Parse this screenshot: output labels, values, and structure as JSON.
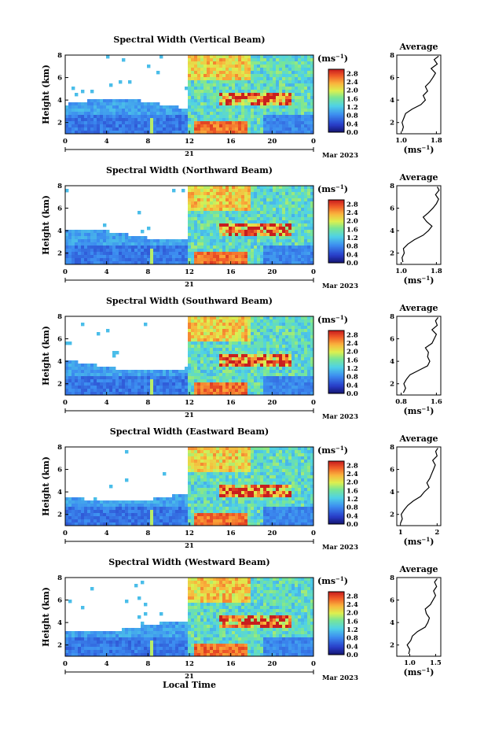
{
  "figure": {
    "xlabel": "Local Time",
    "date_label": "Mar 2023",
    "day_label": "21",
    "colorbar_unit": "(ms",
    "colorbar_unit_sup": "−1",
    "colorbar_unit_close": ")",
    "avg_xlabel": "(ms",
    "avg_xlabel_sup": "−1",
    "avg_xlabel_close": ")",
    "avg_title": "Average",
    "ylabel": "Height (km)"
  },
  "chart_data": [
    {
      "type": "heatmap",
      "title": "Spectral Width (Vertical Beam)",
      "xlabel": "",
      "ylabel": "Height (km)",
      "x_ticks": [
        "0",
        "4",
        "8",
        "12",
        "16",
        "20",
        "0"
      ],
      "x_range_hours": [
        0,
        24
      ],
      "y_ticks": [
        "2",
        "4",
        "6",
        "8"
      ],
      "y_range_km": [
        1,
        8
      ],
      "colorbar_ticks": [
        "0.0",
        "0.4",
        "0.8",
        "1.2",
        "1.6",
        "2.0",
        "2.4",
        "2.8"
      ],
      "colorbar_range": [
        0,
        3
      ],
      "average_profile": {
        "x_ticks": [
          "1.0",
          "1.8"
        ],
        "x_range": [
          0.9,
          1.9
        ],
        "y_ticks": [
          "2",
          "4",
          "6",
          "8"
        ],
        "height_km": [
          1.2,
          1.6,
          2.0,
          2.4,
          2.8,
          3.2,
          3.6,
          4.0,
          4.4,
          4.8,
          5.2,
          5.6,
          6.0,
          6.4,
          6.8,
          7.2,
          7.6,
          7.9
        ],
        "width": [
          1.02,
          1.05,
          1.02,
          1.06,
          1.1,
          1.25,
          1.45,
          1.55,
          1.5,
          1.6,
          1.55,
          1.65,
          1.72,
          1.78,
          1.68,
          1.82,
          1.75,
          1.85
        ]
      }
    },
    {
      "type": "heatmap",
      "title": "Spectral Width (Northward Beam)",
      "xlabel": "",
      "ylabel": "Height (km)",
      "x_ticks": [
        "0",
        "4",
        "8",
        "12",
        "16",
        "20",
        "0"
      ],
      "x_range_hours": [
        0,
        24
      ],
      "y_ticks": [
        "2",
        "4",
        "6",
        "8"
      ],
      "y_range_km": [
        1,
        8
      ],
      "colorbar_ticks": [
        "0.0",
        "0.4",
        "0.8",
        "1.2",
        "1.6",
        "2.0",
        "2.4",
        "2.8"
      ],
      "colorbar_range": [
        0,
        3
      ],
      "average_profile": {
        "x_ticks": [
          "1.0",
          "1.8"
        ],
        "x_range": [
          0.9,
          1.9
        ],
        "y_ticks": [
          "2",
          "4",
          "6",
          "8"
        ],
        "height_km": [
          1.2,
          1.6,
          2.0,
          2.4,
          2.8,
          3.2,
          3.6,
          4.0,
          4.4,
          4.8,
          5.2,
          5.6,
          6.0,
          6.4,
          6.8,
          7.2,
          7.6,
          7.9
        ],
        "width": [
          1.04,
          1.02,
          1.07,
          1.05,
          1.15,
          1.3,
          1.5,
          1.62,
          1.7,
          1.58,
          1.5,
          1.62,
          1.72,
          1.8,
          1.85,
          1.78,
          1.86,
          1.82
        ]
      }
    },
    {
      "type": "heatmap",
      "title": "Spectral Width (Southward Beam)",
      "xlabel": "",
      "ylabel": "Height (km)",
      "x_ticks": [
        "0",
        "4",
        "8",
        "12",
        "16",
        "20",
        "0"
      ],
      "x_range_hours": [
        0,
        24
      ],
      "y_ticks": [
        "2",
        "4",
        "6",
        "8"
      ],
      "y_range_km": [
        1,
        8
      ],
      "colorbar_ticks": [
        "0.0",
        "0.4",
        "0.8",
        "1.2",
        "1.6",
        "2.0",
        "2.4",
        "2.8"
      ],
      "colorbar_range": [
        0,
        3
      ],
      "average_profile": {
        "x_ticks": [
          "0.8",
          "1.6"
        ],
        "x_range": [
          0.7,
          1.7
        ],
        "y_ticks": [
          "2",
          "4",
          "6",
          "8"
        ],
        "height_km": [
          1.2,
          1.6,
          2.0,
          2.4,
          2.8,
          3.2,
          3.6,
          4.0,
          4.4,
          4.8,
          5.2,
          5.6,
          6.0,
          6.4,
          6.8,
          7.2,
          7.6,
          7.9
        ],
        "width": [
          0.85,
          0.9,
          0.86,
          0.92,
          1.0,
          1.2,
          1.4,
          1.45,
          1.4,
          1.42,
          1.35,
          1.5,
          1.55,
          1.6,
          1.5,
          1.62,
          1.58,
          1.64
        ]
      }
    },
    {
      "type": "heatmap",
      "title": "Spectral Width (Eastward Beam)",
      "xlabel": "",
      "ylabel": "Height (km)",
      "x_ticks": [
        "0",
        "4",
        "8",
        "12",
        "16",
        "20",
        "0"
      ],
      "x_range_hours": [
        0,
        24
      ],
      "y_ticks": [
        "2",
        "4",
        "6",
        "8"
      ],
      "y_range_km": [
        1,
        8
      ],
      "colorbar_ticks": [
        "0.0",
        "0.4",
        "0.8",
        "1.2",
        "1.6",
        "2.0",
        "2.4",
        "2.8"
      ],
      "colorbar_range": [
        0,
        3
      ],
      "average_profile": {
        "x_ticks": [
          "1",
          "2"
        ],
        "x_range": [
          0.9,
          2.1
        ],
        "y_ticks": [
          "2",
          "4",
          "6",
          "8"
        ],
        "height_km": [
          1.2,
          1.6,
          2.0,
          2.4,
          2.8,
          3.2,
          3.6,
          4.0,
          4.4,
          4.8,
          5.2,
          5.6,
          6.0,
          6.4,
          6.8,
          7.2,
          7.6,
          7.9
        ],
        "width": [
          1.0,
          1.05,
          1.02,
          1.1,
          1.2,
          1.35,
          1.55,
          1.65,
          1.78,
          1.72,
          1.8,
          1.85,
          1.9,
          1.95,
          1.88,
          2.0,
          1.96,
          2.02
        ]
      }
    },
    {
      "type": "heatmap",
      "title": "Spectral Width (Westward Beam)",
      "xlabel": "Local Time",
      "ylabel": "Height (km)",
      "x_ticks": [
        "0",
        "4",
        "8",
        "12",
        "16",
        "20",
        "0"
      ],
      "x_range_hours": [
        0,
        24
      ],
      "y_ticks": [
        "2",
        "4",
        "6",
        "8"
      ],
      "y_range_km": [
        1,
        8
      ],
      "colorbar_ticks": [
        "0.0",
        "0.4",
        "0.8",
        "1.2",
        "1.6",
        "2.0",
        "2.4",
        "2.8"
      ],
      "colorbar_range": [
        0,
        3
      ],
      "average_profile": {
        "x_ticks": [
          "1.0",
          "1.5"
        ],
        "x_range": [
          0.75,
          1.6
        ],
        "y_ticks": [
          "2",
          "4",
          "6",
          "8"
        ],
        "height_km": [
          1.2,
          1.6,
          2.0,
          2.4,
          2.8,
          3.2,
          3.6,
          4.0,
          4.4,
          4.8,
          5.2,
          5.6,
          6.0,
          6.4,
          6.8,
          7.2,
          7.6,
          7.9
        ],
        "width": [
          0.98,
          1.0,
          0.95,
          1.02,
          1.05,
          1.15,
          1.3,
          1.35,
          1.38,
          1.32,
          1.3,
          1.4,
          1.45,
          1.5,
          1.46,
          1.52,
          1.48,
          1.53
        ]
      }
    }
  ]
}
